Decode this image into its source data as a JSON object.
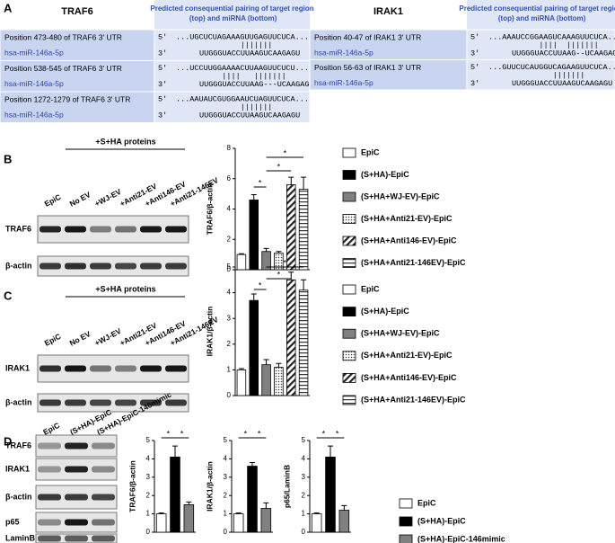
{
  "panels": {
    "A": "A",
    "B": "B",
    "C": "C",
    "D": "D"
  },
  "table_traf6": {
    "gene": "TRAF6",
    "header": "Predicted consequential pairing of target region (top) and miRNA (bottom)",
    "rows": [
      {
        "position": "Position 473-480 of TRAF6 3' UTR",
        "mirna": "hsa-miR-146a-5p",
        "prime5": "5'",
        "target": "...UGCUCUAGAAAGUUGAGUUCUCA...",
        "pairing": "       |||||||",
        "prime3": "3'",
        "mirna_seq": "UUGGGUACCUUAAGUCAAGAGU"
      },
      {
        "position": "Position 538-545 of TRAF6 3' UTR",
        "mirna": "hsa-miR-146a-5p",
        "prime5": "5'",
        "target": "...UCCUUGGAAAACUUAAGUUCUCU...",
        "pairing": "   ||||   |||||||",
        "prime3": "3'",
        "mirna_seq": "UUGGGUACCUUAAG---UCAAGAGU"
      },
      {
        "position": "Position 1272-1279 of TRAF6 3' UTR",
        "mirna": "hsa-miR-146a-5p",
        "prime5": "5'",
        "target": "...AAUAUCGUGGAAUCUAGUUCUCA...",
        "pairing": "       |||||||",
        "prime3": "3'",
        "mirna_seq": "UUGGGUACCUUAAGUCAAGAGU"
      }
    ]
  },
  "table_irak1": {
    "gene": "IRAK1",
    "header": "Predicted consequential pairing of target region (top) and miRNA (bottom)",
    "rows": [
      {
        "position": "Position 40-47 of IRAK1 3' UTR",
        "mirna": "hsa-miR-146a-5p",
        "prime5": "5'",
        "target": "...AAAUCCGGAAGUCAAAGUUCUCA...",
        "pairing": "    ||||  |||||||",
        "prime3": "3'",
        "mirna_seq": "UUGGGUACCUUAAG--UCAAGAGU"
      },
      {
        "position": "Position 56-63 of IRAK1 3' UTR",
        "mirna": "hsa-miR-146a-5p",
        "prime5": "5'",
        "target": "...GUUCUCAUGGUCAGAAGUUCUCA...",
        "pairing": "       |||||||",
        "prime3": "3'",
        "mirna_seq": "UUGGGUACCUUAAGUCAAGAGU"
      }
    ]
  },
  "blot_b": {
    "treatment": "+S+HA proteins",
    "lanes": [
      "EpiC",
      "No EV",
      "+WJ-EV",
      "+Anti21-EV",
      "+Anti146-EV",
      "+Anti21-146EV"
    ],
    "bands": [
      "TRAF6",
      "β-actin"
    ]
  },
  "blot_c": {
    "treatment": "+S+HA proteins",
    "lanes": [
      "EpiC",
      "No EV",
      "+WJ-EV",
      "+Anti21-EV",
      "+Anti146-EV",
      "+Anti21-146EV"
    ],
    "bands": [
      "IRAK1",
      "β-actin"
    ]
  },
  "blot_d": {
    "lanes": [
      "EpiC",
      "(S+HA)-EpiC",
      "(S+HA)-EpiC-146mimic"
    ],
    "bands": [
      "TRAF6",
      "IRAK1",
      "β-actin",
      "p65",
      "LaminB"
    ]
  },
  "chart_data": [
    {
      "type": "bar",
      "y_label": "TRAF6/β-actin",
      "categories": [
        "EpiC",
        "(S+HA)-EpiC",
        "(S+HA+WJ-EV)-EpiC",
        "(S+HA+Anti21-EV)-EpiC",
        "(S+HA+Anti146-EV)-EpiC",
        "(S+HA+Anti21-146EV)-EpiC"
      ],
      "values": [
        1,
        4.6,
        1.2,
        1.1,
        5.6,
        5.3
      ],
      "errors": [
        0.05,
        0.35,
        0.2,
        0.1,
        0.5,
        0.8
      ],
      "fills": [
        "white",
        "black",
        "gray",
        "dots",
        "diag",
        "hstripe"
      ],
      "ylim": [
        0,
        8
      ],
      "yticks": [
        0,
        2,
        4,
        6,
        8
      ],
      "significance": [
        "*",
        "*",
        "*"
      ]
    },
    {
      "type": "bar",
      "y_label": "IRAK1/β-actin",
      "categories": [
        "EpiC",
        "(S+HA)-EpiC",
        "(S+HA+WJ-EV)-EpiC",
        "(S+HA+Anti21-EV)-EpiC",
        "(S+HA+Anti146-EV)-EpiC",
        "(S+HA+Anti21-146EV)-EpiC"
      ],
      "values": [
        1,
        3.7,
        1.2,
        1.1,
        4.5,
        4.1
      ],
      "errors": [
        0.05,
        0.25,
        0.2,
        0.15,
        0.3,
        0.4
      ],
      "fills": [
        "white",
        "black",
        "gray",
        "dots",
        "diag",
        "hstripe"
      ],
      "ylim": [
        0,
        5
      ],
      "yticks": [
        0,
        1,
        2,
        3,
        4,
        5
      ],
      "significance": [
        "*",
        "*",
        "*"
      ]
    },
    {
      "type": "bar",
      "y_label": "TRAF6/β-actin",
      "categories": [
        "EpiC",
        "(S+HA)-EpiC",
        "(S+HA)-EpiC-146mimic"
      ],
      "values": [
        1,
        4.1,
        1.5
      ],
      "errors": [
        0.05,
        0.6,
        0.15
      ],
      "fills": [
        "white",
        "black",
        "gray"
      ],
      "ylim": [
        0,
        5
      ],
      "yticks": [
        0,
        1,
        2,
        3,
        4,
        5
      ],
      "significance": [
        "*",
        "*"
      ]
    },
    {
      "type": "bar",
      "y_label": "IRAK1/β-actin",
      "values": [
        1,
        3.6,
        1.3
      ],
      "errors": [
        0.05,
        0.2,
        0.3
      ],
      "fills": [
        "white",
        "black",
        "gray"
      ],
      "ylim": [
        0,
        5
      ],
      "yticks": [
        0,
        1,
        2,
        3,
        4,
        5
      ],
      "significance": [
        "*",
        "*"
      ]
    },
    {
      "type": "bar",
      "y_label": "p65/LaminB",
      "values": [
        1,
        4.1,
        1.2
      ],
      "errors": [
        0.05,
        0.6,
        0.25
      ],
      "fills": [
        "white",
        "black",
        "gray"
      ],
      "ylim": [
        0,
        5
      ],
      "yticks": [
        0,
        1,
        2,
        3,
        4,
        5
      ],
      "significance": [
        "*",
        "*"
      ]
    }
  ]
}
